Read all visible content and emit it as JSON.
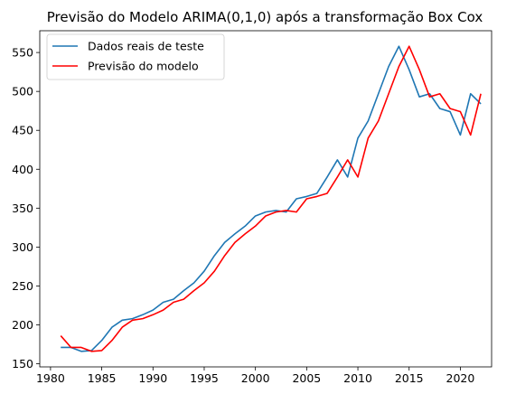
{
  "chart_data": {
    "type": "line",
    "title": "Previsão do Modelo ARIMA(0,1,0) após a transformação Box Cox",
    "xlabel": "",
    "ylabel": "",
    "xlim": [
      1979.95,
      1981.0
    ],
    "ylim": [
      146,
      578
    ],
    "x_ticks": [
      1980,
      1985,
      1990,
      1995,
      2000,
      2005,
      2010,
      2015,
      2020
    ],
    "y_ticks": [
      150,
      200,
      250,
      300,
      350,
      400,
      450,
      500,
      550
    ],
    "grid": false,
    "legend_position": "upper-left",
    "x": [
      1981,
      1982,
      1983,
      1984,
      1985,
      1986,
      1987,
      1988,
      1989,
      1990,
      1991,
      1992,
      1993,
      1994,
      1995,
      1996,
      1997,
      1998,
      1999,
      2000,
      2001,
      2002,
      2003,
      2004,
      2005,
      2006,
      2007,
      2008,
      2009,
      2010,
      2011,
      2012,
      2013,
      2014,
      2015,
      2016,
      2017,
      2018,
      2019,
      2020,
      2021,
      2022
    ],
    "series": [
      {
        "name": "Dados reais de teste",
        "color": "#1f77b4",
        "values": [
          171,
          171,
          166,
          167,
          180,
          197,
          206,
          208,
          213,
          219,
          229,
          233,
          244,
          254,
          269,
          289,
          306,
          317,
          327,
          340,
          345,
          347,
          345,
          362,
          365,
          369,
          390,
          412,
          390,
          440,
          462,
          497,
          532,
          558,
          528,
          493,
          497,
          478,
          474,
          444,
          497,
          484
        ]
      },
      {
        "name": "Previsão do modelo",
        "color": "#ff0000",
        "values": [
          186,
          171,
          171,
          166,
          167,
          180,
          197,
          206,
          208,
          213,
          219,
          229,
          233,
          244,
          254,
          269,
          289,
          306,
          317,
          327,
          340,
          345,
          347,
          345,
          362,
          365,
          369,
          390,
          412,
          390,
          440,
          462,
          497,
          532,
          558,
          528,
          493,
          497,
          478,
          474,
          444,
          497
        ]
      }
    ]
  }
}
